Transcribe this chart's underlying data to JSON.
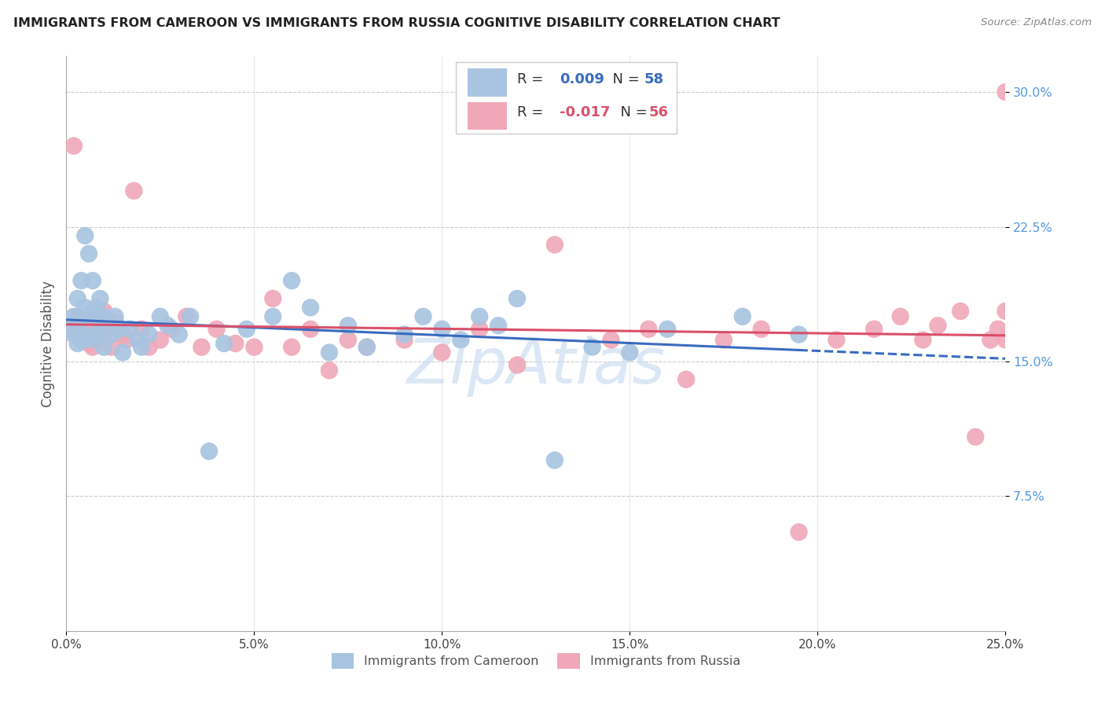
{
  "title": "IMMIGRANTS FROM CAMEROON VS IMMIGRANTS FROM RUSSIA COGNITIVE DISABILITY CORRELATION CHART",
  "source": "Source: ZipAtlas.com",
  "ylabel": "Cognitive Disability",
  "xlim": [
    0.0,
    0.25
  ],
  "ylim": [
    0.0,
    0.32
  ],
  "R_cameroon": 0.009,
  "N_cameroon": 58,
  "R_russia": -0.017,
  "N_russia": 56,
  "color_cameroon": "#a8c4e0",
  "color_russia": "#f0a8b8",
  "line_color_cameroon": "#3a6bbf",
  "line_color_russia": "#d9506a",
  "ytick_color": "#5599dd",
  "watermark_color": "#ccddf0",
  "cameroon_x": [
    0.001,
    0.002,
    0.002,
    0.003,
    0.003,
    0.003,
    0.004,
    0.004,
    0.004,
    0.005,
    0.005,
    0.005,
    0.006,
    0.006,
    0.007,
    0.007,
    0.007,
    0.008,
    0.008,
    0.009,
    0.009,
    0.01,
    0.01,
    0.011,
    0.012,
    0.013,
    0.014,
    0.015,
    0.017,
    0.019,
    0.02,
    0.022,
    0.025,
    0.027,
    0.03,
    0.033,
    0.038,
    0.042,
    0.048,
    0.055,
    0.06,
    0.065,
    0.07,
    0.075,
    0.08,
    0.09,
    0.095,
    0.1,
    0.105,
    0.11,
    0.115,
    0.12,
    0.13,
    0.14,
    0.15,
    0.16,
    0.18,
    0.195
  ],
  "cameroon_y": [
    0.17,
    0.175,
    0.165,
    0.185,
    0.168,
    0.16,
    0.195,
    0.175,
    0.162,
    0.22,
    0.18,
    0.165,
    0.21,
    0.175,
    0.195,
    0.178,
    0.162,
    0.18,
    0.165,
    0.185,
    0.168,
    0.175,
    0.158,
    0.172,
    0.165,
    0.175,
    0.168,
    0.155,
    0.168,
    0.162,
    0.158,
    0.165,
    0.175,
    0.17,
    0.165,
    0.175,
    0.1,
    0.16,
    0.168,
    0.175,
    0.195,
    0.18,
    0.155,
    0.17,
    0.158,
    0.165,
    0.175,
    0.168,
    0.162,
    0.175,
    0.17,
    0.185,
    0.095,
    0.158,
    0.155,
    0.168,
    0.175,
    0.165
  ],
  "russia_x": [
    0.001,
    0.002,
    0.003,
    0.004,
    0.004,
    0.005,
    0.006,
    0.007,
    0.007,
    0.008,
    0.009,
    0.01,
    0.011,
    0.012,
    0.013,
    0.015,
    0.016,
    0.018,
    0.02,
    0.022,
    0.025,
    0.028,
    0.032,
    0.036,
    0.04,
    0.045,
    0.05,
    0.055,
    0.06,
    0.065,
    0.07,
    0.075,
    0.08,
    0.09,
    0.1,
    0.11,
    0.12,
    0.13,
    0.145,
    0.155,
    0.165,
    0.175,
    0.185,
    0.195,
    0.205,
    0.215,
    0.222,
    0.228,
    0.232,
    0.238,
    0.242,
    0.246,
    0.248,
    0.25,
    0.25,
    0.25
  ],
  "russia_y": [
    0.168,
    0.27,
    0.175,
    0.162,
    0.168,
    0.165,
    0.16,
    0.168,
    0.158,
    0.175,
    0.162,
    0.178,
    0.168,
    0.158,
    0.172,
    0.165,
    0.162,
    0.245,
    0.168,
    0.158,
    0.162,
    0.168,
    0.175,
    0.158,
    0.168,
    0.16,
    0.158,
    0.185,
    0.158,
    0.168,
    0.145,
    0.162,
    0.158,
    0.162,
    0.155,
    0.168,
    0.148,
    0.215,
    0.162,
    0.168,
    0.14,
    0.162,
    0.168,
    0.055,
    0.162,
    0.168,
    0.175,
    0.162,
    0.17,
    0.178,
    0.108,
    0.162,
    0.168,
    0.178,
    0.162,
    0.3
  ]
}
